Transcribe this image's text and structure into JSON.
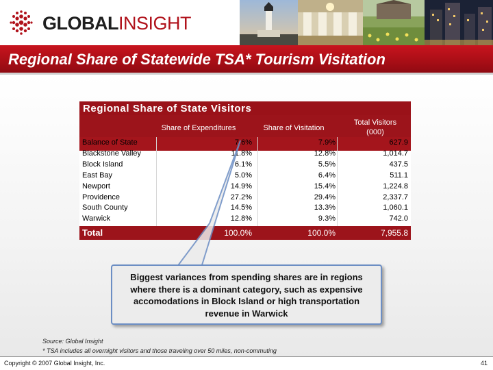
{
  "header": {
    "logo_part1": "GLOBAL",
    "logo_part2": "INSIGHT",
    "title": "Regional Share of Statewide TSA* Tourism Visitation"
  },
  "table": {
    "title": "Regional Share of State Visitors",
    "columns": [
      "",
      "Share of Expenditures",
      "Share of Visitation",
      "Total Visitors"
    ],
    "columns_sub": [
      "",
      "",
      "",
      "(000)"
    ],
    "rows": [
      [
        "Balance of State",
        "7.6%",
        "7.9%",
        "627.9"
      ],
      [
        "Blackstone Valley",
        "11.8%",
        "12.8%",
        "1,014.7"
      ],
      [
        "Block Island",
        "6.1%",
        "5.5%",
        "437.5"
      ],
      [
        "East Bay",
        "5.0%",
        "6.4%",
        "511.1"
      ],
      [
        "Newport",
        "14.9%",
        "15.4%",
        "1,224.8"
      ],
      [
        "Providence",
        "27.2%",
        "29.4%",
        "2,337.7"
      ],
      [
        "South County",
        "14.5%",
        "13.3%",
        "1,060.1"
      ],
      [
        "Warwick",
        "12.8%",
        "9.3%",
        "742.0"
      ]
    ],
    "total": [
      "Total",
      "100.0%",
      "100.0%",
      "7,955.8"
    ]
  },
  "callout": {
    "text": "Biggest variances from spending shares are in regions where there is a dominant category, such as expensive accomodations in Block Island or high transportation revenue in Warwick"
  },
  "footer": {
    "source": "Source: Global Insight",
    "note": "* TSA includes all overnight visitors and those traveling over 50 miles, non-commuting",
    "copyright": "Copyright © 2007 Global Insight, Inc.",
    "page": "41"
  },
  "colors": {
    "brand_red": "#b0121b",
    "table_header": "#9c141b",
    "callout_border": "#6c8ec4"
  },
  "icons": [
    "globe-logo-icon",
    "lighthouse-photo",
    "ballroom-photo",
    "garden-photo",
    "night-city-photo"
  ]
}
